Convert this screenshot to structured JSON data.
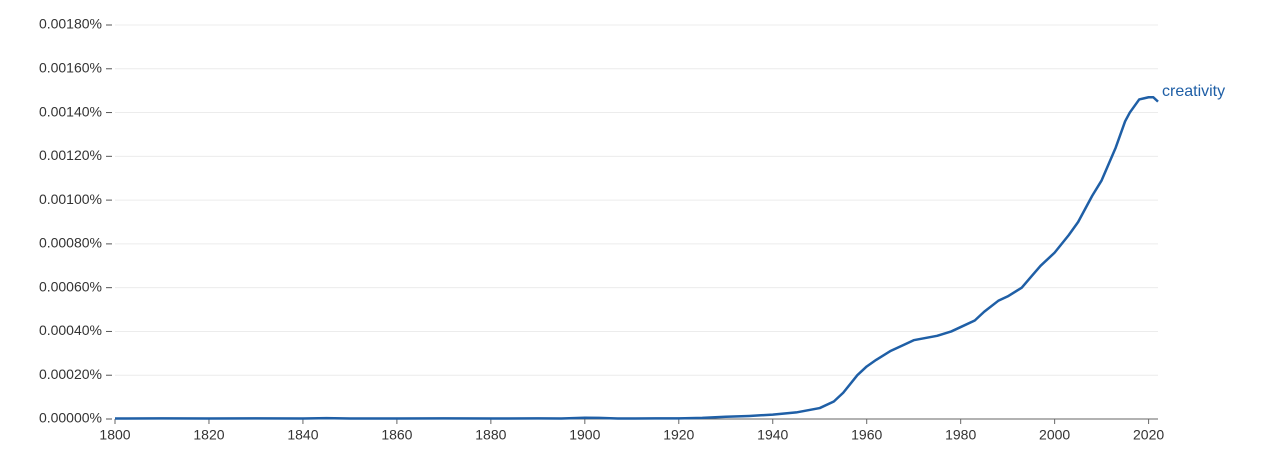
{
  "chart_data": {
    "type": "line",
    "x": [
      1800,
      1810,
      1820,
      1830,
      1840,
      1845,
      1850,
      1860,
      1870,
      1880,
      1890,
      1895,
      1900,
      1903,
      1907,
      1915,
      1920,
      1925,
      1930,
      1935,
      1940,
      1945,
      1950,
      1953,
      1955,
      1958,
      1960,
      1962,
      1965,
      1968,
      1970,
      1975,
      1978,
      1980,
      1983,
      1985,
      1988,
      1990,
      1993,
      1995,
      1997,
      2000,
      2003,
      2005,
      2008,
      2010,
      2013,
      2015,
      2016,
      2018,
      2020,
      2021,
      2022
    ],
    "series": [
      {
        "name": "creativity",
        "color": "#1f5fa6",
        "values": [
          2e-06,
          3e-06,
          2e-06,
          3e-06,
          2e-06,
          4e-06,
          2e-06,
          2e-06,
          3e-06,
          2e-06,
          3e-06,
          2e-06,
          6e-06,
          5e-06,
          2e-06,
          3e-06,
          3e-06,
          5e-06,
          1e-05,
          1.4e-05,
          2e-05,
          3e-05,
          5e-05,
          8e-05,
          0.00012,
          0.0002,
          0.00024,
          0.00027,
          0.00031,
          0.00034,
          0.00036,
          0.00038,
          0.0004,
          0.00042,
          0.00045,
          0.00049,
          0.00054,
          0.00056,
          0.0006,
          0.00065,
          0.0007,
          0.00076,
          0.00084,
          0.0009,
          0.00102,
          0.00109,
          0.00124,
          0.00136,
          0.0014,
          0.00146,
          0.00147,
          0.00147,
          0.00145
        ]
      }
    ],
    "xlim": [
      1800,
      2022
    ],
    "xticks": [
      1800,
      1820,
      1840,
      1860,
      1880,
      1900,
      1920,
      1940,
      1960,
      1980,
      2000,
      2020
    ],
    "ylim": [
      0,
      0.0018
    ],
    "yticks": [
      {
        "value": 0,
        "label": "0.00000%"
      },
      {
        "value": 0.0002,
        "label": "0.00020%"
      },
      {
        "value": 0.0004,
        "label": "0.00040%"
      },
      {
        "value": 0.0006,
        "label": "0.00060%"
      },
      {
        "value": 0.0008,
        "label": "0.00080%"
      },
      {
        "value": 0.001,
        "label": "0.00100%"
      },
      {
        "value": 0.0012,
        "label": "0.00120%"
      },
      {
        "value": 0.0014,
        "label": "0.00140%"
      },
      {
        "value": 0.0016,
        "label": "0.00160%"
      },
      {
        "value": 0.0018,
        "label": "0.00180%"
      }
    ],
    "grid": true
  }
}
